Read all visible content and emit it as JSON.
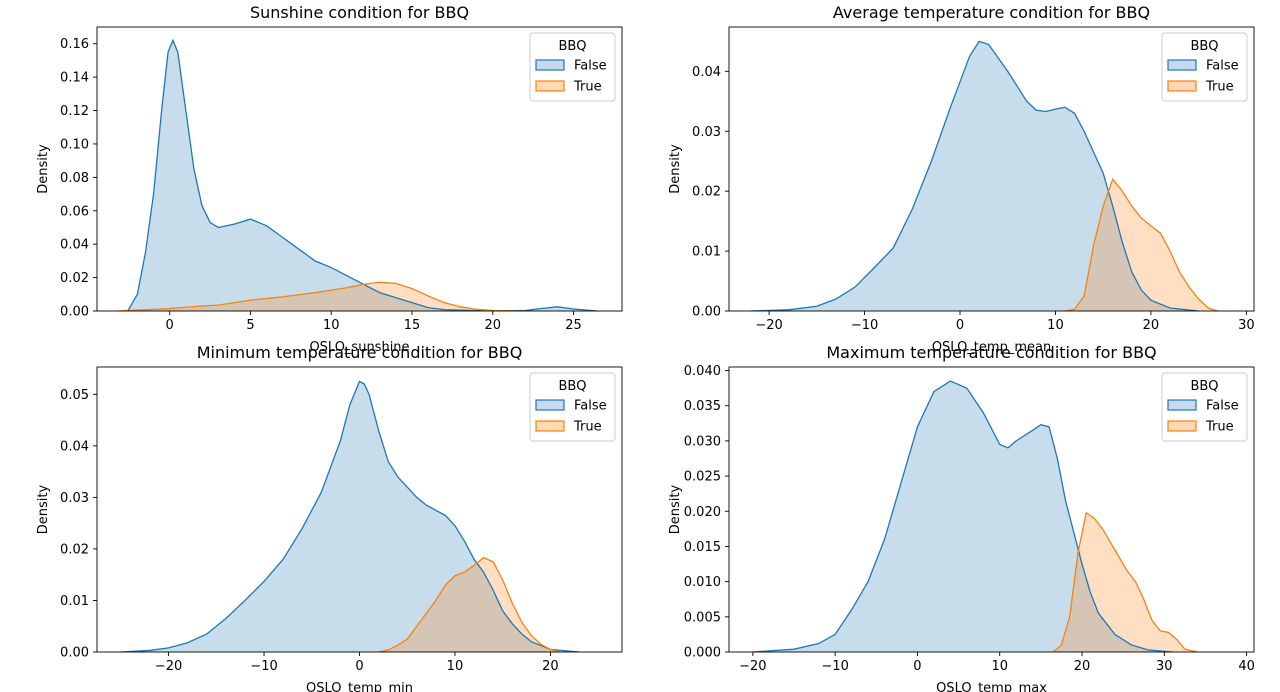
{
  "figure": {
    "legend_title": "BBQ"
  },
  "chart_data": [
    {
      "type": "area",
      "title": "Sunshine condition for BBQ",
      "xlabel": "OSLO_sunshine",
      "ylabel": "Density",
      "xlim": [
        -4.5,
        28
      ],
      "ylim": [
        0,
        0.17
      ],
      "xticks": [
        0,
        5,
        10,
        15,
        20,
        25
      ],
      "xtick_labels": [
        "0",
        "5",
        "10",
        "15",
        "20",
        "25"
      ],
      "yticks": [
        0,
        0.02,
        0.04,
        0.06,
        0.08,
        0.1,
        0.12,
        0.14,
        0.16
      ],
      "ytick_labels": [
        "0.00",
        "0.02",
        "0.04",
        "0.06",
        "0.08",
        "0.10",
        "0.12",
        "0.14",
        "0.16"
      ],
      "legend_position": "top-right",
      "series": [
        {
          "name": "False",
          "color": "#1f77b4",
          "fill": "#c5dbed",
          "points": [
            [
              -2.6,
              0
            ],
            [
              -2.0,
              0.01
            ],
            [
              -1.5,
              0.035
            ],
            [
              -1,
              0.07
            ],
            [
              -0.5,
              0.12
            ],
            [
              -0.1,
              0.155
            ],
            [
              0.2,
              0.162
            ],
            [
              0.5,
              0.155
            ],
            [
              1,
              0.12
            ],
            [
              1.5,
              0.085
            ],
            [
              2,
              0.063
            ],
            [
              2.5,
              0.053
            ],
            [
              3,
              0.05
            ],
            [
              4,
              0.052
            ],
            [
              5,
              0.055
            ],
            [
              6,
              0.051
            ],
            [
              7,
              0.044
            ],
            [
              8,
              0.037
            ],
            [
              9,
              0.03
            ],
            [
              10,
              0.026
            ],
            [
              11,
              0.021
            ],
            [
              12,
              0.016
            ],
            [
              13,
              0.011
            ],
            [
              14,
              0.008
            ],
            [
              15,
              0.005
            ],
            [
              16,
              0.002
            ],
            [
              17,
              0.0008
            ],
            [
              19,
              0.0002
            ],
            [
              21,
              0.0002
            ],
            [
              22,
              0.0003
            ],
            [
              23,
              0.0015
            ],
            [
              24,
              0.0025
            ],
            [
              25,
              0.0012
            ],
            [
              26.5,
              0
            ]
          ]
        },
        {
          "name": "True",
          "color": "#ff7f0e",
          "fill": "#ffd8b5",
          "points": [
            [
              -3.2,
              0
            ],
            [
              -2,
              0.0005
            ],
            [
              0,
              0.0015
            ],
            [
              2,
              0.003
            ],
            [
              3,
              0.0035
            ],
            [
              4,
              0.005
            ],
            [
              5,
              0.0065
            ],
            [
              7,
              0.0085
            ],
            [
              9,
              0.011
            ],
            [
              11,
              0.014
            ],
            [
              12,
              0.016
            ],
            [
              13,
              0.0172
            ],
            [
              14,
              0.0165
            ],
            [
              15,
              0.0135
            ],
            [
              16,
              0.009
            ],
            [
              17,
              0.005
            ],
            [
              18,
              0.0025
            ],
            [
              19,
              0.001
            ],
            [
              20,
              0.0003
            ],
            [
              21.5,
              0
            ]
          ]
        }
      ]
    },
    {
      "type": "area",
      "title": "Average temperature condition for BBQ",
      "xlabel": "OSLO_temp_mean",
      "ylabel": "Density",
      "xlim": [
        -24.2,
        30.8
      ],
      "ylim": [
        0,
        0.0474
      ],
      "xticks": [
        -20,
        -10,
        0,
        10,
        20,
        30
      ],
      "xtick_labels": [
        "−20",
        "−10",
        "0",
        "10",
        "20",
        "30"
      ],
      "yticks": [
        0,
        0.01,
        0.02,
        0.03,
        0.04
      ],
      "ytick_labels": [
        "0.00",
        "0.01",
        "0.02",
        "0.03",
        "0.04"
      ],
      "legend_position": "top-right",
      "series": [
        {
          "name": "False",
          "color": "#1f77b4",
          "fill": "#c5dbed",
          "points": [
            [
              -22,
              0
            ],
            [
              -18,
              0.0002
            ],
            [
              -15,
              0.0008
            ],
            [
              -13,
              0.002
            ],
            [
              -11,
              0.004
            ],
            [
              -9,
              0.0072
            ],
            [
              -7,
              0.0105
            ],
            [
              -5,
              0.017
            ],
            [
              -3,
              0.025
            ],
            [
              -1,
              0.034
            ],
            [
              1,
              0.0425
            ],
            [
              2,
              0.045
            ],
            [
              3,
              0.0445
            ],
            [
              5,
              0.04
            ],
            [
              7,
              0.035
            ],
            [
              8,
              0.0335
            ],
            [
              9,
              0.0333
            ],
            [
              10,
              0.0337
            ],
            [
              11,
              0.034
            ],
            [
              12,
              0.033
            ],
            [
              13,
              0.03
            ],
            [
              14,
              0.0265
            ],
            [
              15,
              0.023
            ],
            [
              16,
              0.0175
            ],
            [
              17,
              0.0115
            ],
            [
              18,
              0.0065
            ],
            [
              19,
              0.0035
            ],
            [
              20,
              0.0018
            ],
            [
              22,
              0.0005
            ],
            [
              25,
              0
            ]
          ]
        },
        {
          "name": "True",
          "color": "#ff7f0e",
          "fill": "#ffd8b5",
          "points": [
            [
              11,
              0
            ],
            [
              12,
              0.0003
            ],
            [
              13,
              0.0025
            ],
            [
              14,
              0.011
            ],
            [
              15,
              0.0175
            ],
            [
              16,
              0.022
            ],
            [
              17,
              0.02
            ],
            [
              18,
              0.0175
            ],
            [
              19,
              0.0155
            ],
            [
              20,
              0.0142
            ],
            [
              21,
              0.013
            ],
            [
              22,
              0.01
            ],
            [
              23,
              0.0065
            ],
            [
              24,
              0.004
            ],
            [
              25,
              0.002
            ],
            [
              26,
              0.0005
            ],
            [
              27,
              0
            ]
          ]
        }
      ]
    },
    {
      "type": "area",
      "title": "Minimum temperature condition for BBQ",
      "xlabel": "OSLO_temp_min",
      "ylabel": "Density",
      "xlim": [
        -27.5,
        27.5
      ],
      "ylim": [
        0,
        0.0553
      ],
      "xticks": [
        -20,
        -10,
        0,
        10,
        20
      ],
      "xtick_labels": [
        "−20",
        "−10",
        "0",
        "10",
        "20"
      ],
      "yticks": [
        0,
        0.01,
        0.02,
        0.03,
        0.04,
        0.05
      ],
      "ytick_labels": [
        "0.00",
        "0.01",
        "0.02",
        "0.03",
        "0.04",
        "0.05"
      ],
      "legend_position": "top-right",
      "series": [
        {
          "name": "False",
          "color": "#1f77b4",
          "fill": "#c5dbed",
          "points": [
            [
              -25,
              0
            ],
            [
              -22,
              0.0003
            ],
            [
              -20,
              0.0008
            ],
            [
              -18,
              0.0018
            ],
            [
              -16,
              0.0035
            ],
            [
              -14,
              0.0065
            ],
            [
              -12,
              0.01
            ],
            [
              -10,
              0.0137
            ],
            [
              -8,
              0.018
            ],
            [
              -6,
              0.024
            ],
            [
              -4,
              0.031
            ],
            [
              -2,
              0.041
            ],
            [
              -1,
              0.048
            ],
            [
              0,
              0.0525
            ],
            [
              0.5,
              0.052
            ],
            [
              1,
              0.05
            ],
            [
              2,
              0.043
            ],
            [
              3,
              0.037
            ],
            [
              4,
              0.034
            ],
            [
              5,
              0.032
            ],
            [
              6,
              0.03
            ],
            [
              7,
              0.0285
            ],
            [
              8,
              0.0275
            ],
            [
              9,
              0.0265
            ],
            [
              10,
              0.0245
            ],
            [
              11,
              0.0215
            ],
            [
              12,
              0.018
            ],
            [
              13,
              0.0155
            ],
            [
              14,
              0.012
            ],
            [
              15,
              0.008
            ],
            [
              16,
              0.0055
            ],
            [
              17,
              0.0035
            ],
            [
              18,
              0.002
            ],
            [
              20,
              0.0005
            ],
            [
              23,
              0
            ]
          ]
        },
        {
          "name": "True",
          "color": "#ff7f0e",
          "fill": "#ffd8b5",
          "points": [
            [
              2,
              0
            ],
            [
              3,
              0.0004
            ],
            [
              4,
              0.0013
            ],
            [
              5,
              0.0025
            ],
            [
              6,
              0.005
            ],
            [
              7,
              0.0075
            ],
            [
              8,
              0.01
            ],
            [
              9,
              0.013
            ],
            [
              10,
              0.0148
            ],
            [
              11,
              0.0155
            ],
            [
              12,
              0.0168
            ],
            [
              13,
              0.0183
            ],
            [
              14,
              0.0175
            ],
            [
              15,
              0.014
            ],
            [
              16,
              0.0095
            ],
            [
              17,
              0.0058
            ],
            [
              18,
              0.0032
            ],
            [
              19,
              0.0015
            ],
            [
              20,
              0.0005
            ],
            [
              21,
              0
            ]
          ]
        }
      ]
    },
    {
      "type": "area",
      "title": "Maximum temperature condition for BBQ",
      "xlabel": "OSLO_temp_max",
      "ylabel": "Density",
      "xlim": [
        -22.9,
        40.9
      ],
      "ylim": [
        0,
        0.0405
      ],
      "xticks": [
        -20,
        -10,
        0,
        10,
        20,
        30,
        40
      ],
      "xtick_labels": [
        "−20",
        "−10",
        "0",
        "10",
        "20",
        "30",
        "40"
      ],
      "yticks": [
        0,
        0.005,
        0.01,
        0.015,
        0.02,
        0.025,
        0.03,
        0.035,
        0.04
      ],
      "ytick_labels": [
        "0.000",
        "0.005",
        "0.010",
        "0.015",
        "0.020",
        "0.025",
        "0.030",
        "0.035",
        "0.040"
      ],
      "legend_position": "top-right",
      "series": [
        {
          "name": "False",
          "color": "#1f77b4",
          "fill": "#c5dbed",
          "points": [
            [
              -20,
              0
            ],
            [
              -15,
              0.0004
            ],
            [
              -12,
              0.0012
            ],
            [
              -10,
              0.0025
            ],
            [
              -8,
              0.006
            ],
            [
              -6,
              0.01
            ],
            [
              -4,
              0.016
            ],
            [
              -2,
              0.024
            ],
            [
              0,
              0.032
            ],
            [
              2,
              0.037
            ],
            [
              4,
              0.0385
            ],
            [
              6,
              0.0375
            ],
            [
              8,
              0.034
            ],
            [
              10,
              0.0295
            ],
            [
              11,
              0.029
            ],
            [
              12,
              0.03
            ],
            [
              14,
              0.0315
            ],
            [
              15,
              0.0323
            ],
            [
              16,
              0.032
            ],
            [
              17,
              0.0275
            ],
            [
              18,
              0.0215
            ],
            [
              19,
              0.017
            ],
            [
              20,
              0.0125
            ],
            [
              21,
              0.0085
            ],
            [
              22,
              0.0055
            ],
            [
              24,
              0.0025
            ],
            [
              26,
              0.001
            ],
            [
              28,
              0.0003
            ],
            [
              31,
              0
            ]
          ]
        },
        {
          "name": "True",
          "color": "#ff7f0e",
          "fill": "#ffd8b5",
          "points": [
            [
              16.5,
              0
            ],
            [
              17.5,
              0.001
            ],
            [
              18.5,
              0.005
            ],
            [
              19.5,
              0.014
            ],
            [
              20.5,
              0.0198
            ],
            [
              21.5,
              0.019
            ],
            [
              22.5,
              0.0175
            ],
            [
              23.5,
              0.0155
            ],
            [
              24.5,
              0.0135
            ],
            [
              25.5,
              0.0115
            ],
            [
              26.5,
              0.01
            ],
            [
              27.5,
              0.0075
            ],
            [
              28.5,
              0.0045
            ],
            [
              29.5,
              0.003
            ],
            [
              30.5,
              0.0028
            ],
            [
              31.5,
              0.0018
            ],
            [
              32.5,
              0.0004
            ],
            [
              34,
              0
            ]
          ]
        }
      ]
    }
  ]
}
